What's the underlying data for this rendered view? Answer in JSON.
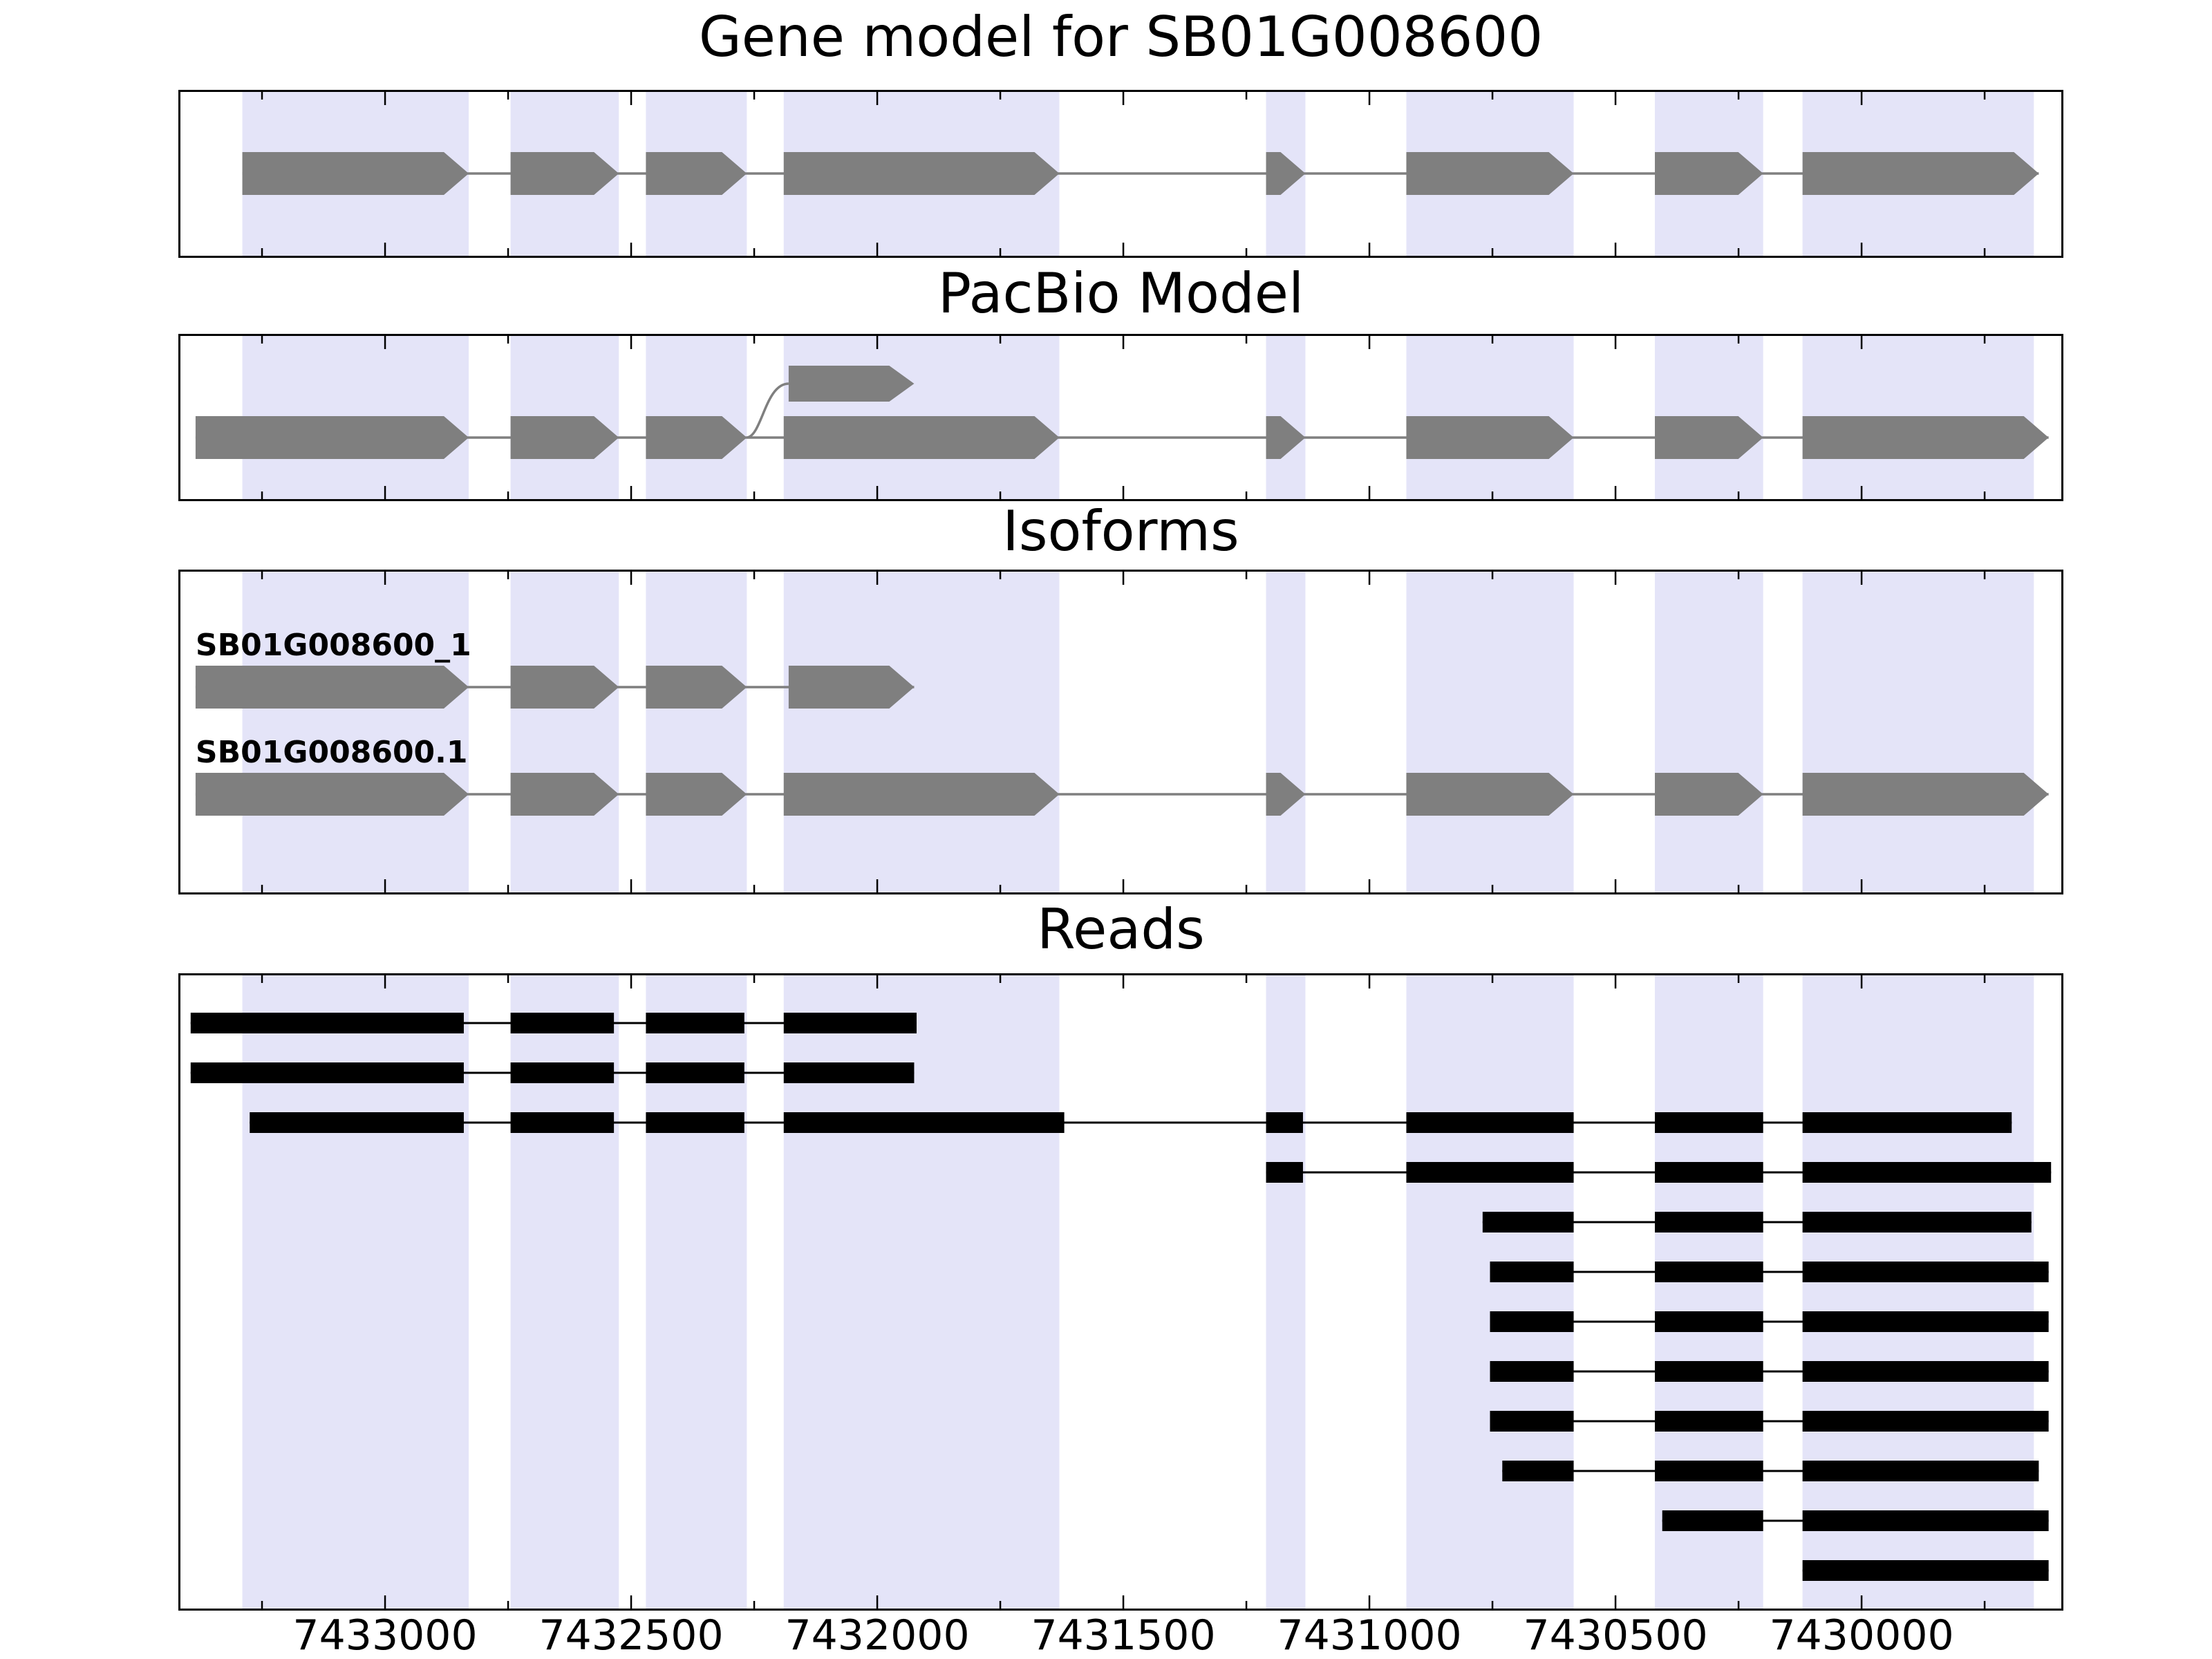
{
  "chart_data": {
    "type": "other",
    "subtype": "gene-structure-tracks",
    "colors": {
      "band": "#e4e4f8",
      "model": "#7f7f7f",
      "read": "#000000",
      "border": "#000000",
      "background": "#ffffff"
    },
    "axis": {
      "domain": [
        7433420,
        7429590
      ],
      "direction": "decreasing",
      "ticks": [
        7433000,
        7432500,
        7432000,
        7431500,
        7431000,
        7430500,
        7430000
      ],
      "tick_labels": [
        "7433000",
        "7432500",
        "7432000",
        "7431500",
        "7431000",
        "7430500",
        "7430000"
      ],
      "minor_step": 250
    },
    "bands": [
      [
        7433290,
        7432830
      ],
      [
        7432745,
        7432525
      ],
      [
        7432470,
        7432265
      ],
      [
        7432190,
        7431630
      ],
      [
        7431210,
        7431130
      ],
      [
        7430925,
        7430585
      ],
      [
        7430420,
        7430200
      ],
      [
        7430120,
        7429650
      ]
    ],
    "panels": [
      {
        "id": "gene_model",
        "title": "Gene model for SB01G008600",
        "exons": [
          [
            7433290,
            7432830
          ],
          [
            7432745,
            7432525
          ],
          [
            7432470,
            7432265
          ],
          [
            7432190,
            7431630
          ],
          [
            7431210,
            7431130
          ],
          [
            7430925,
            7430585
          ],
          [
            7430420,
            7430200
          ],
          [
            7430120,
            7429640
          ]
        ]
      },
      {
        "id": "pacbio_model",
        "title": "PacBio Model",
        "exons": [
          [
            7433385,
            7432830
          ],
          [
            7432745,
            7432525
          ],
          [
            7432470,
            7432265
          ],
          [
            7432190,
            7431630
          ],
          [
            7431210,
            7431130
          ],
          [
            7430925,
            7430585
          ],
          [
            7430420,
            7430200
          ],
          [
            7430120,
            7429620
          ]
        ],
        "alt_exon": [
          7432180,
          7431925
        ],
        "alt_connect_from": 7432265
      },
      {
        "id": "isoforms",
        "title": "Isoforms",
        "rows": [
          {
            "label": "SB01G008600_1",
            "exons": [
              [
                7433385,
                7432830
              ],
              [
                7432745,
                7432525
              ],
              [
                7432470,
                7432265
              ],
              [
                7432180,
                7431925
              ]
            ]
          },
          {
            "label": "SB01G008600.1",
            "exons": [
              [
                7433385,
                7432830
              ],
              [
                7432745,
                7432525
              ],
              [
                7432470,
                7432265
              ],
              [
                7432190,
                7431630
              ],
              [
                7431210,
                7431130
              ],
              [
                7430925,
                7430585
              ],
              [
                7430420,
                7430200
              ],
              [
                7430120,
                7429620
              ]
            ]
          }
        ]
      },
      {
        "id": "reads",
        "title": "Reads",
        "reads": [
          [
            [
              7433395,
              7432840
            ],
            [
              7432745,
              7432535
            ],
            [
              7432470,
              7432270
            ],
            [
              7432190,
              7431920
            ]
          ],
          [
            [
              7433395,
              7432840
            ],
            [
              7432745,
              7432535
            ],
            [
              7432470,
              7432270
            ],
            [
              7432190,
              7431925
            ]
          ],
          [
            [
              7433275,
              7432840
            ],
            [
              7432745,
              7432535
            ],
            [
              7432470,
              7432270
            ],
            [
              7432190,
              7431620
            ],
            [
              7431210,
              7431135
            ],
            [
              7430925,
              7430585
            ],
            [
              7430420,
              7430200
            ],
            [
              7430120,
              7429695
            ]
          ],
          [
            [
              7431210,
              7431135
            ],
            [
              7430925,
              7430585
            ],
            [
              7430420,
              7430200
            ],
            [
              7430120,
              7429615
            ]
          ],
          [
            [
              7430770,
              7430585
            ],
            [
              7430420,
              7430200
            ],
            [
              7430120,
              7429655
            ]
          ],
          [
            [
              7430755,
              7430585
            ],
            [
              7430420,
              7430200
            ],
            [
              7430120,
              7429620
            ]
          ],
          [
            [
              7430755,
              7430585
            ],
            [
              7430420,
              7430200
            ],
            [
              7430120,
              7429620
            ]
          ],
          [
            [
              7430755,
              7430585
            ],
            [
              7430420,
              7430200
            ],
            [
              7430120,
              7429620
            ]
          ],
          [
            [
              7430755,
              7430585
            ],
            [
              7430420,
              7430200
            ],
            [
              7430120,
              7429620
            ]
          ],
          [
            [
              7430730,
              7430585
            ],
            [
              7430420,
              7430200
            ],
            [
              7430120,
              7429640
            ]
          ],
          [
            [
              7430405,
              7430200
            ],
            [
              7430120,
              7429620
            ]
          ],
          [
            [
              7430120,
              7429620
            ]
          ]
        ]
      }
    ]
  }
}
